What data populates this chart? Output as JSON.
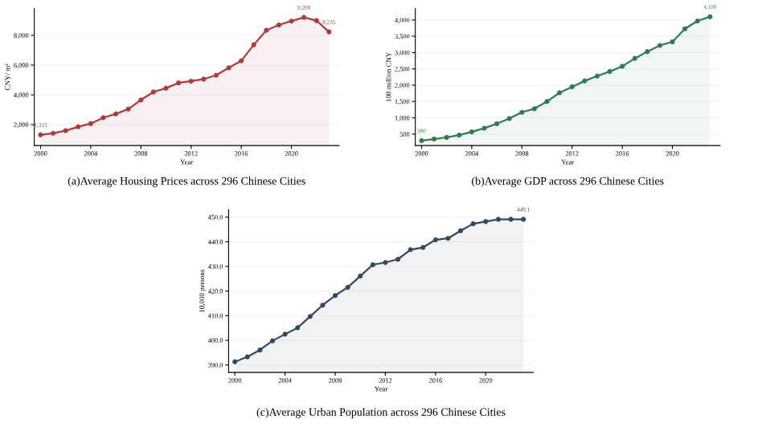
{
  "chart_data": [
    {
      "type": "area",
      "xlabel": "Year",
      "ylabel": "CNY/ m²",
      "annotations": [
        "(a)Average Housing Prices across 296 Chinese Cities"
      ],
      "x": [
        2000,
        2001,
        2002,
        2003,
        2004,
        2005,
        2006,
        2007,
        2008,
        2009,
        2010,
        2011,
        2012,
        2013,
        2014,
        2015,
        2016,
        2017,
        2018,
        2019,
        2020,
        2021,
        2022,
        2023
      ],
      "series": [
        {
          "color": "#b03a3a",
          "values": [
            1315,
            1420,
            1600,
            1860,
            2070,
            2470,
            2720,
            3050,
            3660,
            4200,
            4450,
            4810,
            4920,
            5060,
            5320,
            5820,
            6290,
            7370,
            8340,
            8700,
            8960,
            9208,
            8990,
            8235
          ],
          "value_labels": [
            "1,315",
            null,
            null,
            null,
            null,
            null,
            null,
            null,
            null,
            null,
            null,
            null,
            null,
            null,
            null,
            null,
            null,
            null,
            null,
            null,
            null,
            "9,208",
            null,
            "8,235"
          ]
        }
      ],
      "xlim": [
        1999.5,
        2023.8
      ],
      "ylim": [
        600,
        9800
      ],
      "xticks": [
        2000,
        2004,
        2008,
        2012,
        2016,
        2020
      ],
      "yticks": [
        {
          "value": 2000,
          "label": "2,000"
        },
        {
          "value": 4000,
          "label": "4,000"
        },
        {
          "value": 6000,
          "label": "6,000"
        },
        {
          "value": 8000,
          "label": "8,000"
        }
      ],
      "grid": "y",
      "marker": "circle",
      "line_style": "solid"
    },
    {
      "type": "area",
      "xlabel": "Year",
      "ylabel": "100 million CNY",
      "annotations": [
        "(b)Average GDP across 296 Chinese Cities"
      ],
      "x": [
        2000,
        2001,
        2002,
        2003,
        2004,
        2005,
        2006,
        2007,
        2008,
        2009,
        2010,
        2011,
        2012,
        2013,
        2014,
        2015,
        2016,
        2017,
        2018,
        2019,
        2020,
        2021,
        2022,
        2023
      ],
      "series": [
        {
          "color": "#2e7d4f",
          "values": [
            300,
            350,
            400,
            470,
            570,
            680,
            820,
            980,
            1170,
            1280,
            1500,
            1770,
            1950,
            2130,
            2280,
            2420,
            2580,
            2820,
            3030,
            3220,
            3330,
            3730,
            3970,
            4100
          ],
          "value_labels": [
            "300",
            null,
            null,
            null,
            null,
            null,
            null,
            null,
            null,
            null,
            null,
            null,
            null,
            null,
            null,
            null,
            null,
            null,
            null,
            null,
            null,
            null,
            null,
            "4,100"
          ]
        }
      ],
      "xlim": [
        1999.5,
        2023.8
      ],
      "ylim": [
        150,
        4350
      ],
      "xticks": [
        2000,
        2004,
        2008,
        2012,
        2016,
        2020
      ],
      "yticks": [
        500,
        {
          "value": 1000,
          "label": "1,000"
        },
        {
          "value": 1500,
          "label": "1,500"
        },
        {
          "value": 2000,
          "label": "2,000"
        },
        {
          "value": 2500,
          "label": "2,500"
        },
        {
          "value": 3000,
          "label": "3,000"
        },
        {
          "value": 3500,
          "label": "3,500"
        },
        {
          "value": 4000,
          "label": "4,000"
        }
      ],
      "grid": "y",
      "marker": "circle",
      "line_style": "solid"
    },
    {
      "type": "area",
      "xlabel": "Year",
      "ylabel": "10,000 persons",
      "annotations": [
        "(c)Average Urban Population across 296 Chinese Cities"
      ],
      "x": [
        2000,
        2001,
        2002,
        2003,
        2004,
        2005,
        2006,
        2007,
        2008,
        2009,
        2010,
        2011,
        2012,
        2013,
        2014,
        2015,
        2016,
        2017,
        2018,
        2019,
        2020,
        2021,
        2022,
        2023
      ],
      "series": [
        {
          "color": "#34495e",
          "values": [
            391.3,
            393.3,
            396.1,
            399.8,
            402.5,
            405.1,
            409.7,
            414.3,
            418.2,
            421.5,
            426.1,
            430.7,
            431.6,
            432.9,
            436.8,
            437.7,
            440.8,
            441.4,
            444.5,
            447.3,
            448.2,
            449.1,
            449.1,
            449.1
          ],
          "value_labels": [
            null,
            null,
            null,
            null,
            null,
            null,
            null,
            null,
            null,
            null,
            null,
            null,
            null,
            null,
            null,
            null,
            null,
            null,
            null,
            null,
            null,
            null,
            null,
            "449.1"
          ]
        }
      ],
      "xlim": [
        1999.5,
        2023.8
      ],
      "ylim": [
        387,
        453
      ],
      "xticks": [
        2000,
        2004,
        2008,
        2012,
        2016,
        2020
      ],
      "yticks": [
        {
          "value": 390,
          "label": "390.0"
        },
        {
          "value": 400,
          "label": "400.0"
        },
        {
          "value": 410,
          "label": "410.0"
        },
        {
          "value": 420,
          "label": "420.0"
        },
        {
          "value": 430,
          "label": "430.0"
        },
        {
          "value": 440,
          "label": "440.0"
        },
        {
          "value": 450,
          "label": "450.0"
        }
      ],
      "grid": "y",
      "marker": "circle",
      "line_style": "solid"
    }
  ]
}
